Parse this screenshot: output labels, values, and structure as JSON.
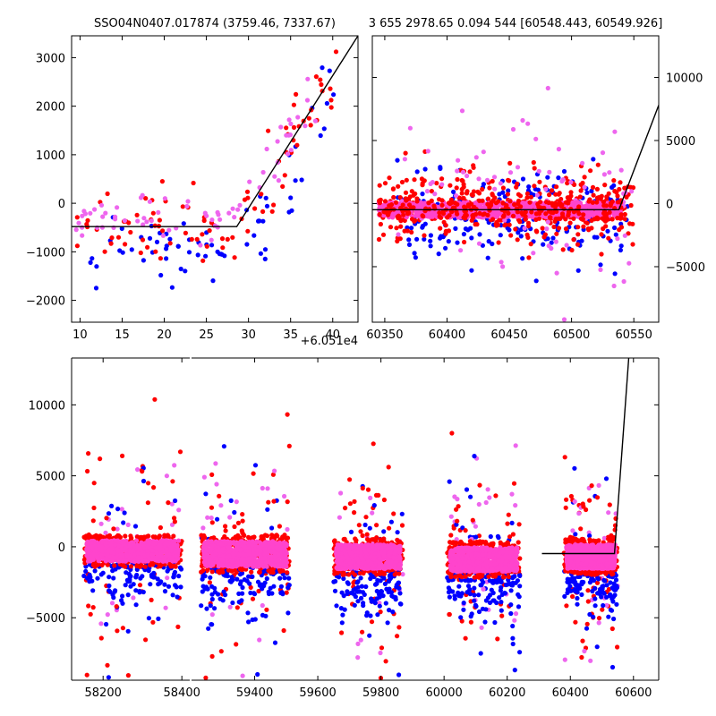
{
  "colors": {
    "blue": "#0000ff",
    "red": "#ff0000",
    "violet": "#ee66ee",
    "pink": "#ff44cc",
    "model": "#000000"
  },
  "chart_data": [
    {
      "id": "top-left",
      "type": "scatter",
      "title": "SSO04N0407.017874 (3759.46, 7337.67)",
      "xlim": [
        9,
        43
      ],
      "ylim": [
        -2450,
        3450
      ],
      "xticks": [
        10,
        15,
        20,
        25,
        30,
        35,
        40
      ],
      "yticks": [
        -2000,
        -1000,
        0,
        1000,
        2000,
        3000
      ],
      "x_offset_label": "+6.051e4",
      "model_line": [
        [
          9,
          -480
        ],
        [
          28.6,
          -480
        ],
        [
          43,
          3450
        ]
      ],
      "scatter_groups": [
        {
          "color": "blue",
          "n": 70,
          "x_range": [
            11,
            41
          ],
          "y_center": -900,
          "y_spread": 700
        },
        {
          "color": "red",
          "n": 90,
          "x_range": [
            9.5,
            41
          ],
          "y_center": -500,
          "y_spread": 600
        },
        {
          "color": "violet",
          "n": 70,
          "x_range": [
            9.5,
            38
          ],
          "y_center": -250,
          "y_spread": 400
        }
      ],
      "rise": {
        "x_start": 28.6,
        "slope": 273
      }
    },
    {
      "id": "top-right",
      "type": "scatter",
      "title": "3 655 2978.65 0.094 544 [60548.443, 60549.926]",
      "xlim": [
        60340,
        60570
      ],
      "ylim": [
        -9400,
        13300
      ],
      "xticks": [
        60350,
        60400,
        60450,
        60500,
        60550
      ],
      "yticks": [
        -5000,
        0,
        5000,
        10000
      ],
      "y_axis_side": "right",
      "model_line": [
        [
          60340,
          -480
        ],
        [
          60538,
          -480
        ],
        [
          60570,
          7800
        ]
      ],
      "band": {
        "x_range": [
          60345,
          60540
        ],
        "y_center": -500,
        "height": 1200
      },
      "scatter_groups": [
        {
          "color": "blue",
          "n": 220,
          "x_range": [
            60360,
            60545
          ],
          "y_center": -1200,
          "y_spread": 1700
        },
        {
          "color": "red",
          "n": 380,
          "x_range": [
            60345,
            60550
          ],
          "y_center": -300,
          "y_spread": 1400
        },
        {
          "color": "violet",
          "n": 90,
          "x_range": [
            60360,
            60550
          ],
          "y_center": 800,
          "y_spread": 3500
        }
      ]
    },
    {
      "id": "bottom",
      "type": "scatter",
      "title": "",
      "xlim": [
        58120,
        60680
      ],
      "ylim": [
        -9400,
        13300
      ],
      "xticks": [
        58200,
        58400,
        59400,
        59600,
        59800,
        60000,
        60200,
        60400,
        60600
      ],
      "yticks": [
        -5000,
        0,
        5000,
        10000
      ],
      "axis_break": {
        "from": 58420,
        "to": 59200
      },
      "model_line": [
        [
          60310,
          -480
        ],
        [
          60540,
          -480
        ],
        [
          60585,
          13300
        ]
      ],
      "seasons": [
        {
          "x_range": [
            58150,
            58400
          ],
          "y_center": -300,
          "height": 1500
        },
        {
          "x_range": [
            59230,
            59510
          ],
          "y_center": -500,
          "height": 1800
        },
        {
          "x_range": [
            59650,
            59870
          ],
          "y_center": -700,
          "height": 1700
        },
        {
          "x_range": [
            60010,
            60240
          ],
          "y_center": -900,
          "height": 1700
        },
        {
          "x_range": [
            60380,
            60550
          ],
          "y_center": -700,
          "height": 1700
        }
      ]
    }
  ]
}
